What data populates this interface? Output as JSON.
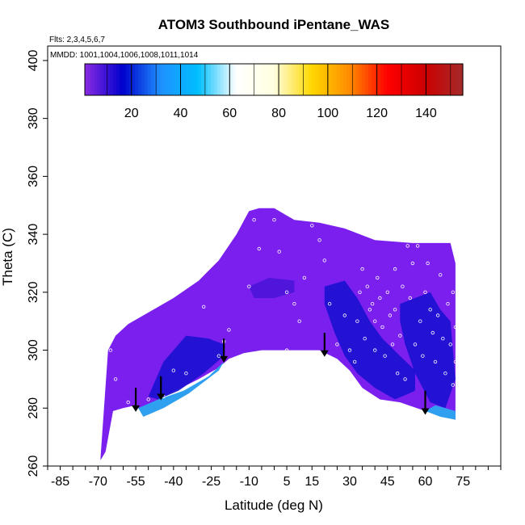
{
  "chart_data": {
    "type": "heatmap",
    "title": "ATOM3 Southbound iPentane_WAS",
    "annotation_flights": "Flts: 2,3,4,5,6,7",
    "annotation_dates": "MMDD: 1001,1004,1006,1008,1011,1014",
    "xlabel": "Latitude (deg N)",
    "ylabel": "Theta (C)",
    "xlim": [
      -90,
      90
    ],
    "ylim": [
      260,
      405
    ],
    "x_ticks": [
      -85,
      -70,
      -55,
      -40,
      -25,
      -10,
      5,
      15,
      30,
      45,
      60,
      75
    ],
    "x_tick_labels": [
      "-85",
      "-70",
      "-55",
      "-40",
      "-25",
      "-10",
      "5",
      "15",
      "30",
      "45",
      "60",
      "75"
    ],
    "y_ticks": [
      260,
      280,
      300,
      320,
      340,
      360,
      380,
      400
    ],
    "y_tick_labels": [
      "260",
      "280",
      "300",
      "320",
      "340",
      "360",
      "380",
      "400"
    ],
    "colorbar": {
      "range": [
        1,
        155
      ],
      "ticks": [
        20,
        40,
        60,
        80,
        100,
        120,
        140
      ],
      "tick_labels": [
        "20",
        "40",
        "60",
        "80",
        "100",
        "120",
        "140"
      ],
      "colors": [
        "#8a2be2",
        "#0000cd",
        "#1e90ff",
        "#00bfff",
        "#ffffff",
        "#ffffe0",
        "#ffd700",
        "#ff8c00",
        "#ff0000",
        "#cd0000",
        "#a52a2a"
      ]
    },
    "domain_top": [
      [
        -69,
        263
      ],
      [
        -66,
        300
      ],
      [
        -63,
        305
      ],
      [
        -58,
        309
      ],
      [
        -50,
        313
      ],
      [
        -40,
        318
      ],
      [
        -30,
        324
      ],
      [
        -22,
        331
      ],
      [
        -15,
        340
      ],
      [
        -10,
        348
      ],
      [
        -6,
        349
      ],
      [
        0,
        349
      ],
      [
        8,
        345
      ],
      [
        18,
        344
      ],
      [
        28,
        342
      ],
      [
        40,
        338
      ],
      [
        55,
        337
      ],
      [
        70,
        337
      ],
      [
        72,
        330
      ]
    ],
    "domain_bottom": [
      [
        72,
        276
      ],
      [
        68,
        277
      ],
      [
        60,
        279
      ],
      [
        50,
        282
      ],
      [
        42,
        283
      ],
      [
        35,
        287
      ],
      [
        30,
        293
      ],
      [
        25,
        297
      ],
      [
        18,
        300
      ],
      [
        8,
        300
      ],
      [
        -5,
        300
      ],
      [
        -12,
        299
      ],
      [
        -18,
        297
      ],
      [
        -22,
        294
      ],
      [
        -30,
        290
      ],
      [
        -37,
        287
      ],
      [
        -44,
        284
      ],
      [
        -48,
        282
      ],
      [
        -52,
        278
      ],
      [
        -55,
        281
      ],
      [
        -60,
        280
      ],
      [
        -64,
        279
      ],
      [
        -67,
        265
      ],
      [
        -69,
        262
      ]
    ],
    "blue_regions": [
      {
        "value": 10,
        "poly": [
          [
            -50,
            284
          ],
          [
            -44,
            296
          ],
          [
            -35,
            305
          ],
          [
            -26,
            304
          ],
          [
            -20,
            302
          ],
          [
            -20,
            298
          ],
          [
            -28,
            292
          ],
          [
            -38,
            286
          ],
          [
            -46,
            283
          ]
        ]
      },
      {
        "value": 10,
        "poly": [
          [
            20,
            322
          ],
          [
            28,
            324
          ],
          [
            33,
            318
          ],
          [
            38,
            310
          ],
          [
            43,
            304
          ],
          [
            50,
            298
          ],
          [
            56,
            293
          ],
          [
            56,
            286
          ],
          [
            48,
            283
          ],
          [
            40,
            287
          ],
          [
            33,
            292
          ],
          [
            28,
            298
          ],
          [
            24,
            306
          ],
          [
            20,
            316
          ]
        ]
      },
      {
        "value": 10,
        "poly": [
          [
            50,
            316
          ],
          [
            56,
            318
          ],
          [
            62,
            320
          ],
          [
            66,
            314
          ],
          [
            70,
            310
          ],
          [
            72,
            290
          ],
          [
            68,
            280
          ],
          [
            62,
            282
          ],
          [
            56,
            292
          ],
          [
            52,
            302
          ],
          [
            50,
            310
          ]
        ]
      },
      {
        "value": 8,
        "poly": [
          [
            -10,
            322
          ],
          [
            -2,
            325
          ],
          [
            8,
            324
          ],
          [
            8,
            320
          ],
          [
            0,
            318
          ],
          [
            -8,
            318
          ]
        ]
      }
    ],
    "lightblue_regions": [
      {
        "value": 45,
        "poly": [
          [
            -52,
            277
          ],
          [
            -44,
            280
          ],
          [
            -34,
            285
          ],
          [
            -22,
            293
          ],
          [
            -20,
            296
          ],
          [
            -26,
            291
          ],
          [
            -36,
            286
          ],
          [
            -46,
            283
          ],
          [
            -54,
            280
          ]
        ]
      },
      {
        "value": 45,
        "poly": [
          [
            60,
            279
          ],
          [
            66,
            277
          ],
          [
            72,
            276
          ],
          [
            72,
            279
          ],
          [
            64,
            281
          ]
        ]
      }
    ],
    "sample_points": [
      [
        -65,
        300
      ],
      [
        -64,
        306
      ],
      [
        -63,
        290
      ],
      [
        -58,
        282
      ],
      [
        -55,
        280
      ],
      [
        -50,
        283
      ],
      [
        -44,
        284
      ],
      [
        -40,
        293
      ],
      [
        -35,
        292
      ],
      [
        -28,
        315
      ],
      [
        -22,
        298
      ],
      [
        -20,
        303
      ],
      [
        -18,
        307
      ],
      [
        -10,
        322
      ],
      [
        -8,
        345
      ],
      [
        -6,
        335
      ],
      [
        0,
        345
      ],
      [
        2,
        334
      ],
      [
        5,
        320
      ],
      [
        5,
        300
      ],
      [
        8,
        316
      ],
      [
        10,
        310
      ],
      [
        12,
        325
      ],
      [
        15,
        343
      ],
      [
        18,
        338
      ],
      [
        20,
        331
      ],
      [
        22,
        316
      ],
      [
        25,
        302
      ],
      [
        28,
        312
      ],
      [
        30,
        300
      ],
      [
        32,
        296
      ],
      [
        33,
        310
      ],
      [
        34,
        320
      ],
      [
        35,
        328
      ],
      [
        36,
        304
      ],
      [
        37,
        322
      ],
      [
        38,
        314
      ],
      [
        39,
        316
      ],
      [
        40,
        310
      ],
      [
        40,
        300
      ],
      [
        41,
        325
      ],
      [
        42,
        318
      ],
      [
        43,
        308
      ],
      [
        44,
        298
      ],
      [
        45,
        320
      ],
      [
        46,
        312
      ],
      [
        47,
        302
      ],
      [
        48,
        328
      ],
      [
        48,
        314
      ],
      [
        49,
        292
      ],
      [
        50,
        305
      ],
      [
        51,
        322
      ],
      [
        52,
        290
      ],
      [
        53,
        336
      ],
      [
        54,
        318
      ],
      [
        55,
        330
      ],
      [
        56,
        302
      ],
      [
        57,
        336
      ],
      [
        58,
        310
      ],
      [
        59,
        298
      ],
      [
        60,
        320
      ],
      [
        61,
        330
      ],
      [
        62,
        314
      ],
      [
        63,
        306
      ],
      [
        64,
        296
      ],
      [
        65,
        312
      ],
      [
        66,
        326
      ],
      [
        67,
        304
      ],
      [
        68,
        292
      ],
      [
        69,
        316
      ],
      [
        70,
        302
      ],
      [
        71,
        288
      ],
      [
        71,
        320
      ],
      [
        72,
        296
      ],
      [
        72,
        308
      ]
    ],
    "arrows": [
      {
        "lat": -55,
        "theta_from": 287,
        "theta_to": 279
      },
      {
        "lat": -45,
        "theta_from": 291,
        "theta_to": 283
      },
      {
        "lat": -20,
        "theta_from": 304,
        "theta_to": 296
      },
      {
        "lat": 20,
        "theta_from": 306,
        "theta_to": 298
      },
      {
        "lat": 60,
        "theta_from": 286,
        "theta_to": 278
      }
    ]
  }
}
